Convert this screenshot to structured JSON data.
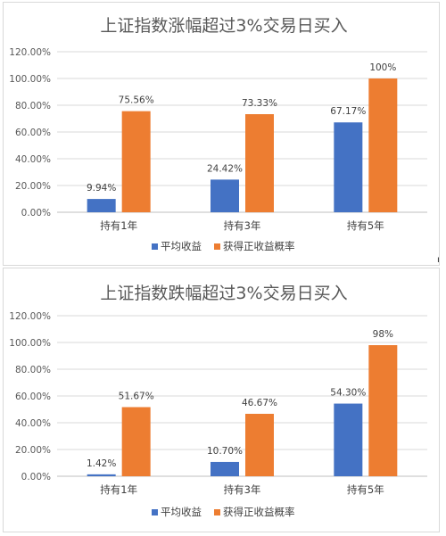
{
  "chart_data": [
    {
      "type": "bar",
      "title": "上证指数涨幅超过3%交易日买入",
      "categories": [
        "持有1年",
        "持有3年",
        "持有5年"
      ],
      "y_ticks": [
        "0.00%",
        "20.00%",
        "40.00%",
        "60.00%",
        "80.00%",
        "100.00%",
        "120.00%"
      ],
      "ylim": [
        0,
        120
      ],
      "grid": true,
      "legend_position": "bottom",
      "series": [
        {
          "name": "平均收益",
          "color": "#4472c4",
          "values": [
            9.94,
            24.42,
            67.17
          ],
          "labels": [
            "9.94%",
            "24.42%",
            "67.17%"
          ]
        },
        {
          "name": "获得正收益概率",
          "color": "#ed7d31",
          "values": [
            75.56,
            73.33,
            100
          ],
          "labels": [
            "75.56%",
            "73.33%",
            "100%"
          ]
        }
      ]
    },
    {
      "type": "bar",
      "title": "上证指数跌幅超过3%交易日买入",
      "categories": [
        "持有1年",
        "持有3年",
        "持有5年"
      ],
      "y_ticks": [
        "0.00%",
        "20.00%",
        "40.00%",
        "60.00%",
        "80.00%",
        "100.00%",
        "120.00%"
      ],
      "ylim": [
        0,
        120
      ],
      "grid": true,
      "legend_position": "bottom",
      "series": [
        {
          "name": "平均收益",
          "color": "#4472c4",
          "values": [
            1.42,
            10.7,
            54.3
          ],
          "labels": [
            "1.42%",
            "10.70%",
            "54.30%"
          ]
        },
        {
          "name": "获得正收益概率",
          "color": "#ed7d31",
          "values": [
            51.67,
            46.67,
            98
          ],
          "labels": [
            "51.67%",
            "46.67%",
            "98%"
          ]
        }
      ]
    }
  ]
}
